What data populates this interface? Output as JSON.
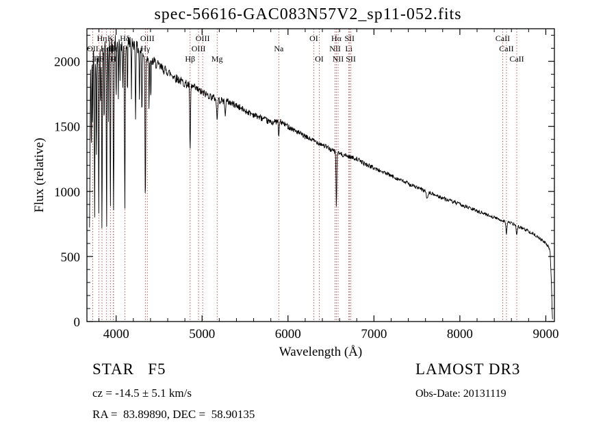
{
  "title": "spec-56616-GAC083N57V2_sp11-052.fits",
  "chart_data": {
    "type": "line",
    "title": "spec-56616-GAC083N57V2_sp11-052.fits",
    "xlabel": "Wavelength (Å)",
    "ylabel": "Flux (relative)",
    "xlim": [
      3660,
      9100
    ],
    "ylim": [
      0,
      2250
    ],
    "x_ticks": [
      4000,
      5000,
      6000,
      7000,
      8000,
      9000
    ],
    "y_ticks": [
      0,
      500,
      1000,
      1500,
      2000
    ],
    "grid": false,
    "legend": "none",
    "line_color": "#000000",
    "marker_line_color": "#a83030",
    "marker_label_color": "#1a1a1a",
    "series": [
      {
        "name": "spectrum",
        "continuum_points": [
          [
            3690,
            700
          ],
          [
            3702,
            1900
          ],
          [
            3720,
            2000
          ],
          [
            3750,
            2050
          ],
          [
            3800,
            2080
          ],
          [
            3850,
            2100
          ],
          [
            3900,
            2090
          ],
          [
            3950,
            2120
          ],
          [
            4000,
            2140
          ],
          [
            4050,
            2130
          ],
          [
            4100,
            2120
          ],
          [
            4150,
            2150
          ],
          [
            4200,
            2140
          ],
          [
            4250,
            2100
          ],
          [
            4300,
            2070
          ],
          [
            4350,
            2040
          ],
          [
            4400,
            2010
          ],
          [
            4450,
            1990
          ],
          [
            4500,
            1960
          ],
          [
            4600,
            1920
          ],
          [
            4700,
            1870
          ],
          [
            4800,
            1830
          ],
          [
            4900,
            1800
          ],
          [
            5000,
            1760
          ],
          [
            5100,
            1730
          ],
          [
            5200,
            1700
          ],
          [
            5300,
            1690
          ],
          [
            5400,
            1660
          ],
          [
            5500,
            1620
          ],
          [
            5600,
            1590
          ],
          [
            5700,
            1560
          ],
          [
            5800,
            1530
          ],
          [
            5900,
            1540
          ],
          [
            6000,
            1500
          ],
          [
            6100,
            1460
          ],
          [
            6200,
            1420
          ],
          [
            6300,
            1390
          ],
          [
            6400,
            1360
          ],
          [
            6500,
            1320
          ],
          [
            6600,
            1290
          ],
          [
            6700,
            1270
          ],
          [
            6800,
            1250
          ],
          [
            6900,
            1210
          ],
          [
            7000,
            1180
          ],
          [
            7100,
            1150
          ],
          [
            7200,
            1120
          ],
          [
            7300,
            1090
          ],
          [
            7400,
            1060
          ],
          [
            7500,
            1030
          ],
          [
            7600,
            1000
          ],
          [
            7700,
            975
          ],
          [
            7800,
            950
          ],
          [
            7900,
            925
          ],
          [
            8000,
            900
          ],
          [
            8100,
            875
          ],
          [
            8200,
            850
          ],
          [
            8300,
            825
          ],
          [
            8400,
            800
          ],
          [
            8500,
            775
          ],
          [
            8600,
            755
          ],
          [
            8700,
            725
          ],
          [
            8800,
            695
          ],
          [
            8900,
            655
          ],
          [
            9000,
            600
          ],
          [
            9030,
            575
          ],
          [
            9050,
            540
          ],
          [
            9065,
            300
          ],
          [
            9075,
            60
          ],
          [
            9080,
            8
          ]
        ],
        "absorption_features": [
          [
            3712,
            700,
            4
          ],
          [
            3727,
            500,
            4
          ],
          [
            3750,
            1250,
            5
          ],
          [
            3771,
            900,
            4
          ],
          [
            3798,
            1300,
            5
          ],
          [
            3820,
            500,
            4
          ],
          [
            3835,
            1350,
            5
          ],
          [
            3860,
            600,
            4
          ],
          [
            3889,
            1350,
            5
          ],
          [
            3910,
            500,
            4
          ],
          [
            3933,
            1200,
            5
          ],
          [
            3970,
            1300,
            6
          ],
          [
            4000,
            500,
            4
          ],
          [
            4026,
            400,
            4
          ],
          [
            4045,
            350,
            4
          ],
          [
            4077,
            400,
            4
          ],
          [
            4101,
            1250,
            6
          ],
          [
            4132,
            400,
            4
          ],
          [
            4178,
            450,
            4
          ],
          [
            4226,
            550,
            5
          ],
          [
            4271,
            400,
            4
          ],
          [
            4300,
            500,
            5
          ],
          [
            4340,
            1150,
            6
          ],
          [
            4383,
            450,
            4
          ],
          [
            4404,
            350,
            4
          ],
          [
            4861,
            520,
            6
          ],
          [
            5175,
            160,
            8
          ],
          [
            5269,
            120,
            6
          ],
          [
            5893,
            130,
            6
          ],
          [
            6563,
            430,
            6
          ],
          [
            7620,
            60,
            10
          ],
          [
            8542,
            90,
            8
          ],
          [
            8662,
            80,
            8
          ]
        ],
        "noise_model": {
          "base_amp": 10,
          "blue_amp1": 40,
          "scale1": 1800,
          "blue_amp2": 60,
          "scale2": 300,
          "seed": 42
        }
      }
    ],
    "spectral_line_markers": [
      {
        "label": "OII",
        "wavelength": 3727,
        "row": 2
      },
      {
        "label": "Hθ",
        "wavelength": 3798,
        "row": 3
      },
      {
        "label": "Hη",
        "wavelength": 3835,
        "row": 1
      },
      {
        "label": "HeI",
        "wavelength": 3889,
        "row": 2
      },
      {
        "label": "K",
        "wavelength": 3933,
        "row": 1
      },
      {
        "label": "H",
        "wavelength": 3968,
        "row": 3
      },
      {
        "label": "Hε",
        "wavelength": 3970,
        "row": 2
      },
      {
        "label": "Hδ",
        "wavelength": 4101,
        "row": 1
      },
      {
        "label": "Hγ",
        "wavelength": 4340,
        "row": 2
      },
      {
        "label": "OIII",
        "wavelength": 4363,
        "row": 1
      },
      {
        "label": "Hβ",
        "wavelength": 4861,
        "row": 3
      },
      {
        "label": "OIII",
        "wavelength": 4959,
        "row": 2
      },
      {
        "label": "OIII",
        "wavelength": 5007,
        "row": 1
      },
      {
        "label": "Mg",
        "wavelength": 5175,
        "row": 3
      },
      {
        "label": "Na",
        "wavelength": 5893,
        "row": 2
      },
      {
        "label": "OI",
        "wavelength": 6300,
        "row": 1
      },
      {
        "label": "OI",
        "wavelength": 6364,
        "row": 3
      },
      {
        "label": "NII",
        "wavelength": 6548,
        "row": 2
      },
      {
        "label": "Hα",
        "wavelength": 6563,
        "row": 1
      },
      {
        "label": "NII",
        "wavelength": 6583,
        "row": 3
      },
      {
        "label": "Li",
        "wavelength": 6708,
        "row": 2
      },
      {
        "label": "SII",
        "wavelength": 6716,
        "row": 1
      },
      {
        "label": "SII",
        "wavelength": 6731,
        "row": 3
      },
      {
        "label": "CaII",
        "wavelength": 8498,
        "row": 1
      },
      {
        "label": "CaII",
        "wavelength": 8542,
        "row": 2
      },
      {
        "label": "CaII",
        "wavelength": 8662,
        "row": 3
      }
    ]
  },
  "footer": {
    "class_label": "STAR   F5",
    "cz": "cz = -14.5 ± 5.1 km/s",
    "ra_dec": "RA =  83.89890, DEC =  58.90135",
    "survey": "LAMOST DR3",
    "obs_date": "Obs-Date: 20131119"
  }
}
